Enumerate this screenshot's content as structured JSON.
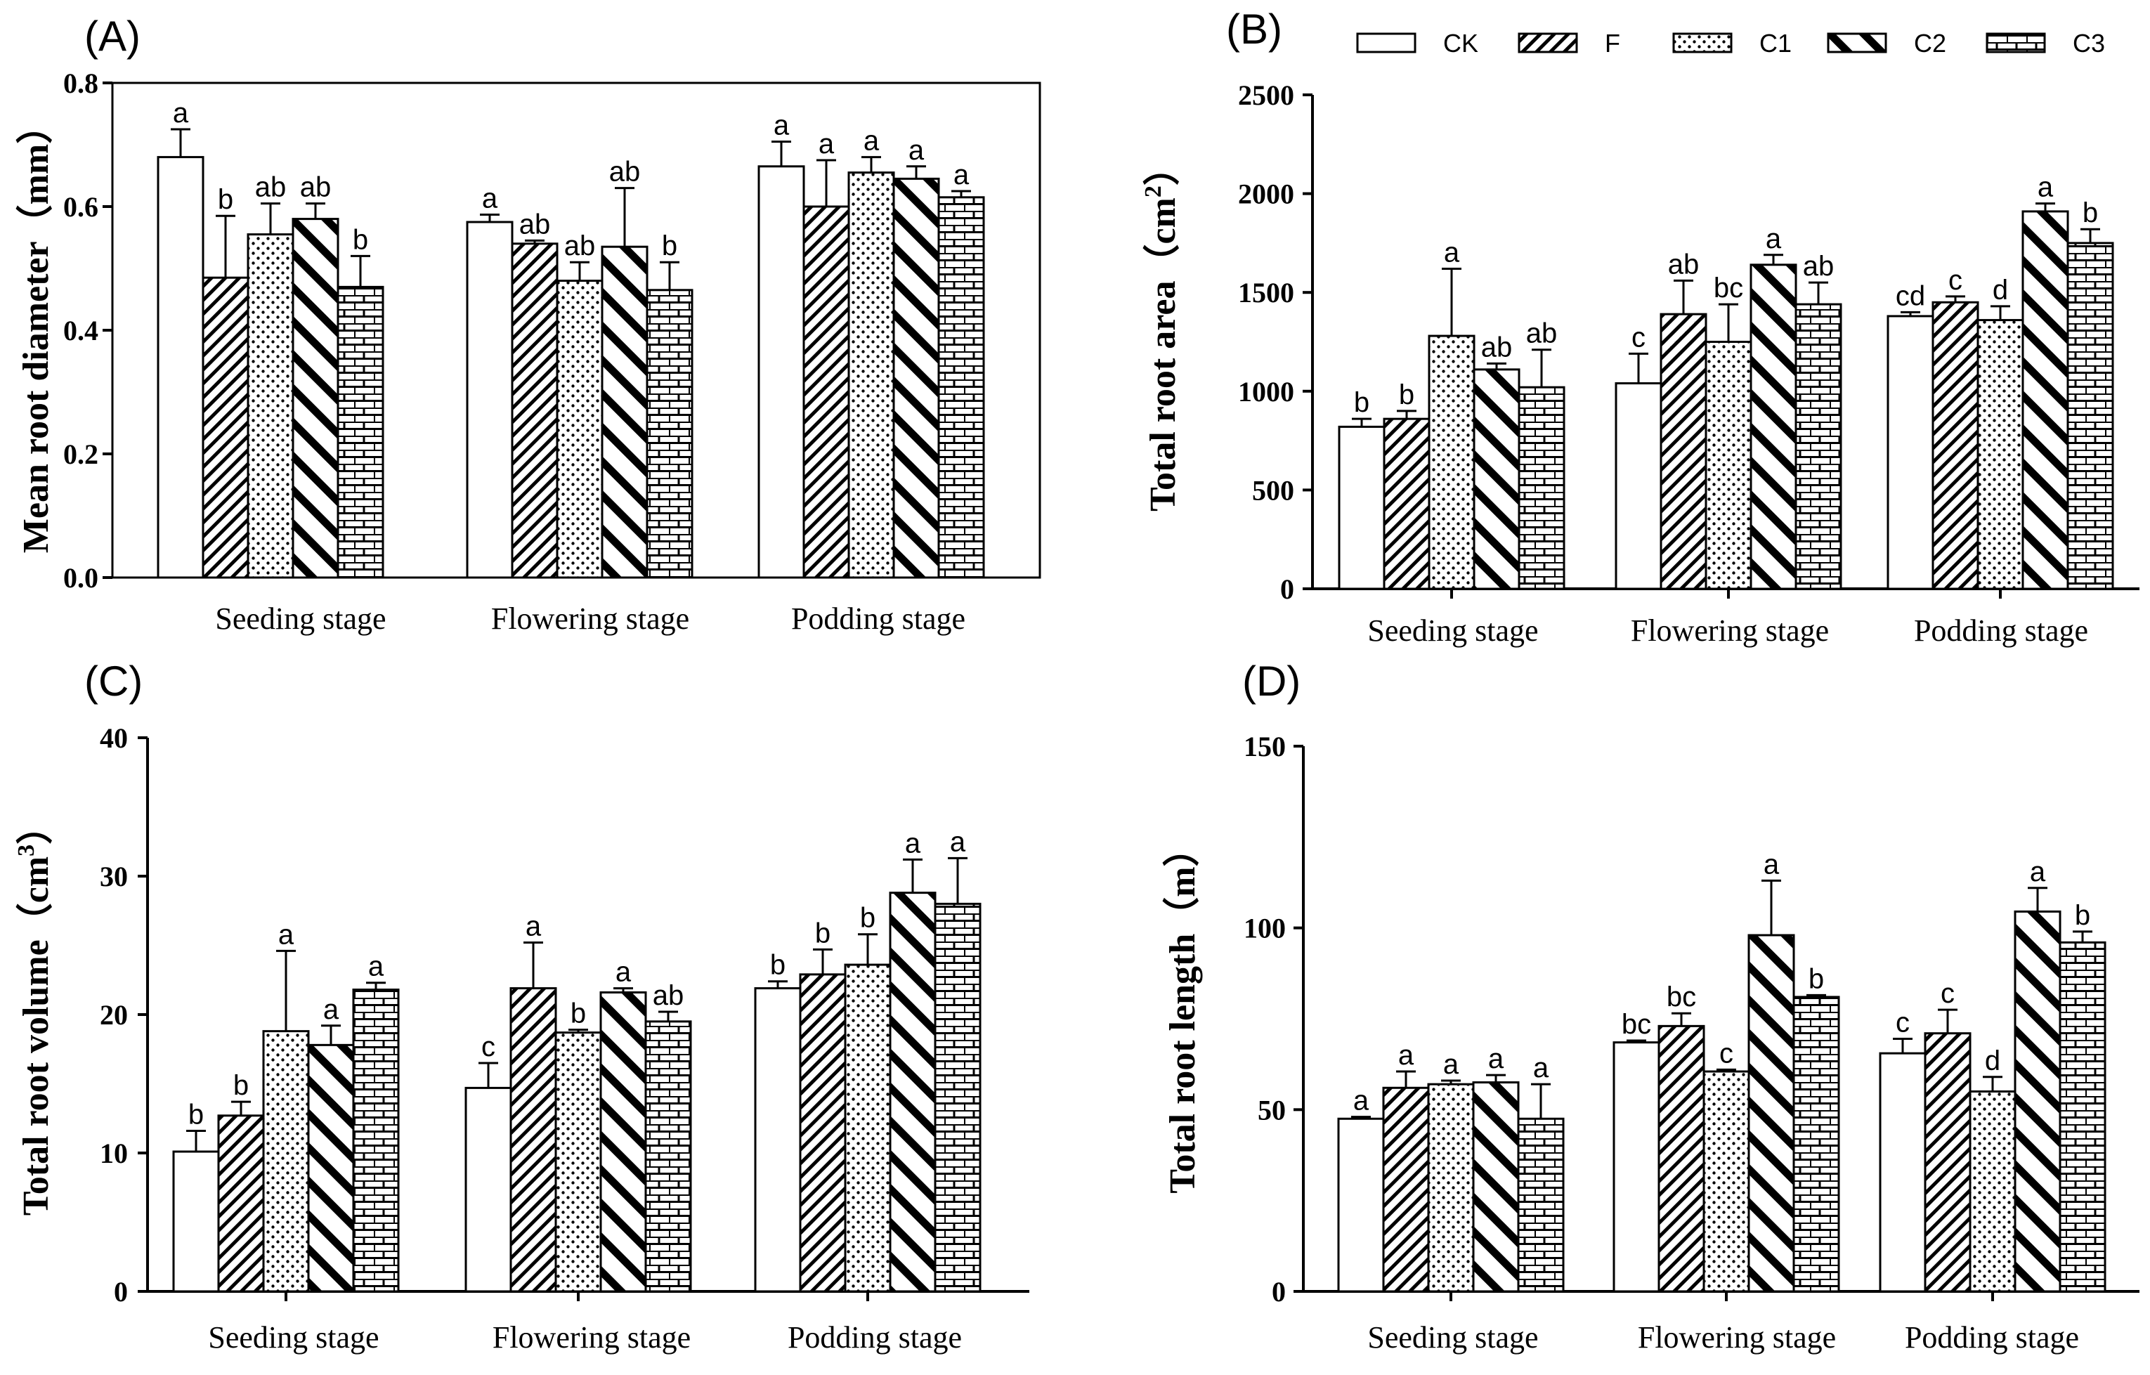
{
  "legend": {
    "items": [
      {
        "key": "CK",
        "pattern": "blank"
      },
      {
        "key": "F",
        "pattern": "diag-narrow"
      },
      {
        "key": "C1",
        "pattern": "dots"
      },
      {
        "key": "C2",
        "pattern": "diag-wide"
      },
      {
        "key": "C3",
        "pattern": "bricks"
      }
    ]
  },
  "colors": {
    "ink": "#000000",
    "fill": "#ffffff"
  },
  "chart_data": [
    {
      "id": "A",
      "panel_label": "(A)",
      "type": "bar",
      "ylabel": "Mean root diameter（mm）",
      "ylim": [
        0,
        0.8
      ],
      "ticks": [
        0.0,
        0.2,
        0.4,
        0.6,
        0.8
      ],
      "tick_labels": [
        "0.0",
        "0.2",
        "0.4",
        "0.6",
        "0.8"
      ],
      "categories": [
        "Seeding stage",
        "Flowering stage",
        "Podding stage"
      ],
      "series": [
        {
          "name": "CK",
          "values": [
            0.68,
            0.575,
            0.665
          ],
          "errors": [
            0.045,
            0.012,
            0.04
          ],
          "letters": [
            "a",
            "a",
            "a"
          ]
        },
        {
          "name": "F",
          "values": [
            0.485,
            0.54,
            0.6
          ],
          "errors": [
            0.1,
            0.005,
            0.075
          ],
          "letters": [
            "b",
            "ab",
            "a"
          ]
        },
        {
          "name": "C1",
          "values": [
            0.555,
            0.48,
            0.655
          ],
          "errors": [
            0.05,
            0.03,
            0.025
          ],
          "letters": [
            "ab",
            "ab",
            "a"
          ]
        },
        {
          "name": "C2",
          "values": [
            0.58,
            0.535,
            0.645
          ],
          "errors": [
            0.025,
            0.095,
            0.02
          ],
          "letters": [
            "ab",
            "ab",
            "a"
          ]
        },
        {
          "name": "C3",
          "values": [
            0.47,
            0.465,
            0.615
          ],
          "errors": [
            0.05,
            0.045,
            0.01
          ],
          "letters": [
            "b",
            "b",
            "a"
          ]
        }
      ]
    },
    {
      "id": "B",
      "panel_label": "(B)",
      "type": "bar",
      "ylabel": "Total root area（cm",
      "ylabel_sup": "2",
      "ylabel_end": "）",
      "ylim": [
        0,
        2500
      ],
      "ticks": [
        0,
        500,
        1000,
        1500,
        2000,
        2500
      ],
      "tick_labels": [
        "0",
        "500",
        "1000",
        "1500",
        "2000",
        "2500"
      ],
      "categories": [
        "Seeding stage",
        "Flowering stage",
        "Podding stage"
      ],
      "series": [
        {
          "name": "CK",
          "values": [
            820,
            1040,
            1380
          ],
          "errors": [
            40,
            150,
            20
          ],
          "letters": [
            "b",
            "c",
            "cd"
          ]
        },
        {
          "name": "F",
          "values": [
            860,
            1390,
            1450
          ],
          "errors": [
            40,
            170,
            30
          ],
          "letters": [
            "b",
            "ab",
            "c"
          ]
        },
        {
          "name": "C1",
          "values": [
            1280,
            1250,
            1360
          ],
          "errors": [
            340,
            190,
            70
          ],
          "letters": [
            "a",
            "bc",
            "d"
          ]
        },
        {
          "name": "C2",
          "values": [
            1110,
            1640,
            1910
          ],
          "errors": [
            30,
            50,
            40
          ],
          "letters": [
            "ab",
            "a",
            "a"
          ]
        },
        {
          "name": "C3",
          "values": [
            1020,
            1440,
            1750
          ],
          "errors": [
            190,
            110,
            70
          ],
          "letters": [
            "ab",
            "ab",
            "b"
          ]
        }
      ]
    },
    {
      "id": "C",
      "panel_label": "(C)",
      "type": "bar",
      "ylabel": "Total root volume（cm",
      "ylabel_sup": "3",
      "ylabel_end": "）",
      "ylim": [
        0,
        40
      ],
      "ticks": [
        0,
        10,
        20,
        30,
        40
      ],
      "tick_labels": [
        "0",
        "10",
        "20",
        "30",
        "40"
      ],
      "categories": [
        "Seeding stage",
        "Flowering stage",
        "Podding stage"
      ],
      "series": [
        {
          "name": "CK",
          "values": [
            10.1,
            14.7,
            21.9
          ],
          "errors": [
            1.5,
            1.8,
            0.5
          ],
          "letters": [
            "b",
            "c",
            "b"
          ]
        },
        {
          "name": "F",
          "values": [
            12.7,
            21.9,
            22.9
          ],
          "errors": [
            1.0,
            3.3,
            1.8
          ],
          "letters": [
            "b",
            "a",
            "b"
          ]
        },
        {
          "name": "C1",
          "values": [
            18.8,
            18.7,
            23.6
          ],
          "errors": [
            5.8,
            0.2,
            2.2
          ],
          "letters": [
            "a",
            "b",
            "b"
          ]
        },
        {
          "name": "C2",
          "values": [
            17.8,
            21.6,
            28.8
          ],
          "errors": [
            1.4,
            0.3,
            2.4
          ],
          "letters": [
            "a",
            "a",
            "a"
          ]
        },
        {
          "name": "C3",
          "values": [
            21.8,
            19.5,
            28.0
          ],
          "errors": [
            0.5,
            0.7,
            3.3
          ],
          "letters": [
            "a",
            "ab",
            "a"
          ]
        }
      ]
    },
    {
      "id": "D",
      "panel_label": "(D)",
      "type": "bar",
      "ylabel": "Total root length（m）",
      "ylim": [
        0,
        150
      ],
      "ticks": [
        0,
        50,
        100,
        150
      ],
      "tick_labels": [
        "0",
        "50",
        "100",
        "150"
      ],
      "categories": [
        "Seeding stage",
        "Flowering stage",
        "Podding stage"
      ],
      "series": [
        {
          "name": "CK",
          "values": [
            47.5,
            68.5,
            65.5
          ],
          "errors": [
            0.5,
            0.5,
            4.0
          ],
          "letters": [
            "a",
            "bc",
            "c"
          ]
        },
        {
          "name": "F",
          "values": [
            56.0,
            73.0,
            71.0
          ],
          "errors": [
            4.5,
            3.5,
            6.5
          ],
          "letters": [
            "a",
            "bc",
            "c"
          ]
        },
        {
          "name": "C1",
          "values": [
            57.0,
            60.5,
            55.0
          ],
          "errors": [
            1.0,
            0.5,
            4.0
          ],
          "letters": [
            "a",
            "c",
            "d"
          ]
        },
        {
          "name": "C2",
          "values": [
            57.5,
            98.0,
            104.5
          ],
          "errors": [
            2.0,
            15.0,
            6.5
          ],
          "letters": [
            "a",
            "a",
            "a"
          ]
        },
        {
          "name": "C3",
          "values": [
            47.5,
            81.0,
            96.0
          ],
          "errors": [
            9.5,
            0.5,
            3.0
          ],
          "letters": [
            "a",
            "b",
            "b"
          ]
        }
      ]
    }
  ]
}
